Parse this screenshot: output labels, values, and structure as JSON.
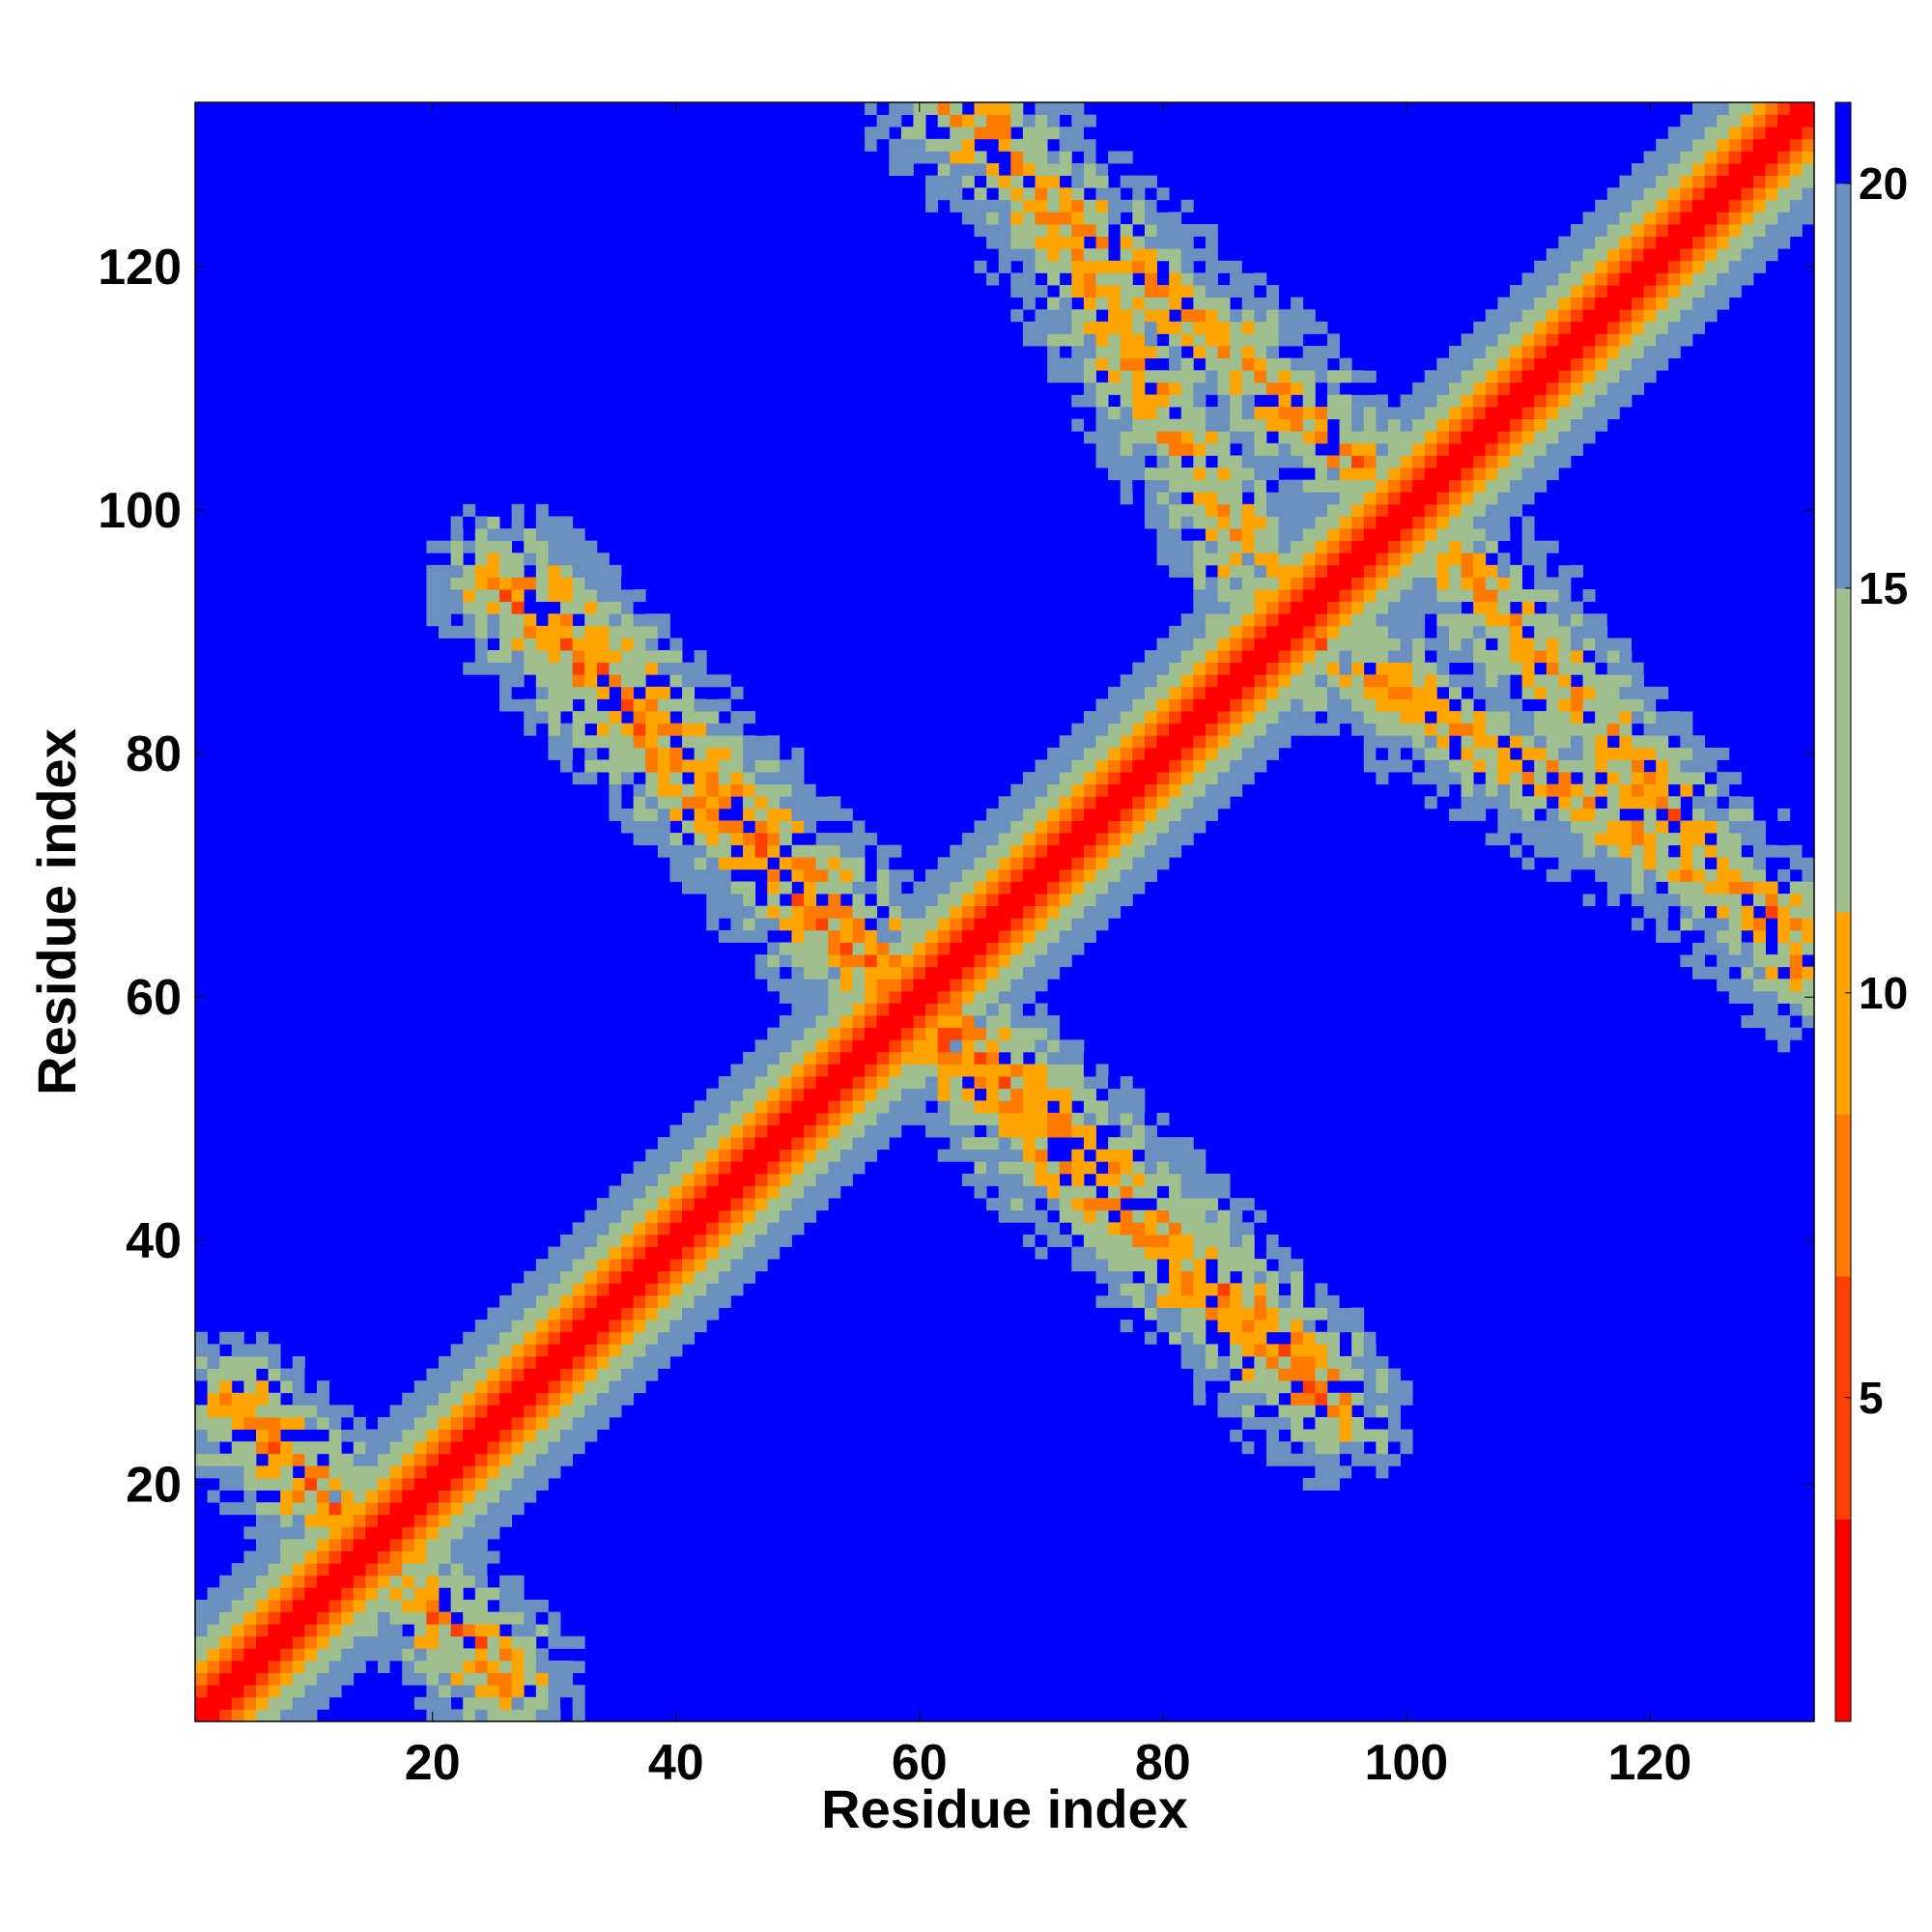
{
  "chart_data": {
    "type": "heatmap",
    "title": "",
    "xlabel": "Residue index",
    "ylabel": "Residue index",
    "x_range": [
      1,
      133
    ],
    "y_range": [
      1,
      133
    ],
    "x_ticks": [
      20,
      40,
      60,
      80,
      100,
      120
    ],
    "y_ticks": [
      20,
      40,
      60,
      80,
      100,
      120
    ],
    "colorbar": {
      "range": [
        1,
        21
      ],
      "ticks": [
        5,
        10,
        15,
        20
      ],
      "colors": [
        "#ff0000",
        "#ff4000",
        "#ff7a00",
        "#ffa500",
        "#9fbf8f",
        "#6b90c0",
        "#0000ff"
      ],
      "thresholds": [
        3.5,
        6.5,
        8.5,
        11,
        15,
        20
      ]
    },
    "matrix_description_features": {
      "diagonal_band": {
        "from": [
          1,
          1
        ],
        "to": [
          133,
          133
        ],
        "core_value": 1,
        "width_residues": 7
      },
      "anti_diagonal_strand_pairs": [
        {
          "i_range": [
            28,
            60
          ],
          "j_range": [
            93,
            60
          ],
          "min_value": 5
        },
        {
          "i_range": [
            60,
            94
          ],
          "j_range": [
            58,
            26
          ],
          "min_value": 5
        },
        {
          "i_range": [
            4,
            24
          ],
          "j_range": [
            26,
            6
          ],
          "min_value": 5
        },
        {
          "i_range": [
            88,
            132
          ],
          "j_range": [
            92,
            66
          ],
          "min_value": 6
        },
        {
          "i_range": [
            62,
            96
          ],
          "j_range": [
            133,
            104
          ],
          "min_value": 6
        }
      ]
    }
  }
}
